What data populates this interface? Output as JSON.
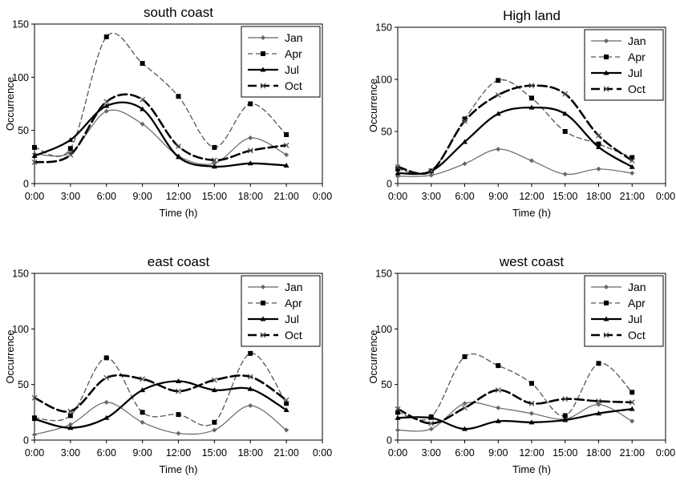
{
  "chart_data": [
    {
      "type": "line",
      "title": "south coast",
      "xlabel": "Time (h)",
      "ylabel": "Occurrence",
      "xticks": [
        "0:00",
        "3:00",
        "6:00",
        "9:00",
        "12:00",
        "15:00",
        "18:00",
        "21:00",
        "0:00"
      ],
      "yticks": [
        "0",
        "50",
        "100",
        "150"
      ],
      "ylim": [
        0,
        150
      ],
      "legend_position": "top-right",
      "grid": false,
      "x": [
        "0:00",
        "3:00",
        "6:00",
        "9:00",
        "12:00",
        "15:00",
        "18:00",
        "21:00"
      ],
      "series": [
        {
          "name": "Jan",
          "values": [
            28,
            29,
            68,
            56,
            26,
            19,
            43,
            27
          ]
        },
        {
          "name": "Apr",
          "values": [
            34,
            33,
            138,
            113,
            82,
            34,
            75,
            46
          ]
        },
        {
          "name": "Jul",
          "values": [
            26,
            41,
            73,
            70,
            25,
            16,
            19,
            17
          ]
        },
        {
          "name": "Oct",
          "values": [
            20,
            27,
            77,
            79,
            35,
            22,
            31,
            36
          ]
        }
      ]
    },
    {
      "type": "line",
      "title": "High land",
      "xlabel": "Time (h)",
      "ylabel": "Occurrence",
      "xticks": [
        "0:00",
        "3:00",
        "6:00",
        "9:00",
        "12:00",
        "15:00",
        "18:00",
        "21:00",
        "0:00"
      ],
      "yticks": [
        "0",
        "50",
        "100",
        "150"
      ],
      "ylim": [
        0,
        150
      ],
      "legend_position": "top-right",
      "grid": false,
      "x": [
        "0:00",
        "3:00",
        "6:00",
        "9:00",
        "12:00",
        "15:00",
        "18:00",
        "21:00"
      ],
      "series": [
        {
          "name": "Jan",
          "values": [
            7,
            8,
            19,
            33,
            22,
            9,
            14,
            10
          ]
        },
        {
          "name": "Apr",
          "values": [
            14,
            12,
            62,
            99,
            82,
            50,
            38,
            25
          ]
        },
        {
          "name": "Jul",
          "values": [
            10,
            12,
            40,
            67,
            73,
            67,
            35,
            16
          ]
        },
        {
          "name": "Oct",
          "values": [
            16,
            12,
            60,
            85,
            94,
            86,
            46,
            22
          ]
        }
      ]
    },
    {
      "type": "line",
      "title": "east coast",
      "xlabel": "Time (h)",
      "ylabel": "Occurrence",
      "xticks": [
        "0:00",
        "3:00",
        "6:00",
        "9:00",
        "12:00",
        "15:00",
        "18:00",
        "21:00",
        "0:00"
      ],
      "yticks": [
        "0",
        "50",
        "100",
        "150"
      ],
      "ylim": [
        0,
        150
      ],
      "legend_position": "top-right",
      "grid": false,
      "x": [
        "0:00",
        "3:00",
        "6:00",
        "9:00",
        "12:00",
        "15:00",
        "18:00",
        "21:00"
      ],
      "series": [
        {
          "name": "Jan",
          "values": [
            5,
            14,
            34,
            16,
            6,
            9,
            31,
            9
          ]
        },
        {
          "name": "Apr",
          "values": [
            20,
            22,
            74,
            25,
            23,
            16,
            78,
            33
          ]
        },
        {
          "name": "Jul",
          "values": [
            19,
            11,
            20,
            45,
            53,
            45,
            46,
            27
          ]
        },
        {
          "name": "Oct",
          "values": [
            38,
            26,
            56,
            55,
            44,
            54,
            57,
            36
          ]
        }
      ]
    },
    {
      "type": "line",
      "title": "west coast",
      "xlabel": "Time (h)",
      "ylabel": "Occurrence",
      "xticks": [
        "0:00",
        "3:00",
        "6:00",
        "9:00",
        "12:00",
        "15:00",
        "18:00",
        "21:00",
        "0:00"
      ],
      "yticks": [
        "0",
        "50",
        "100",
        "150"
      ],
      "ylim": [
        0,
        150
      ],
      "legend_position": "top-right",
      "grid": false,
      "x": [
        "0:00",
        "3:00",
        "6:00",
        "9:00",
        "12:00",
        "15:00",
        "18:00",
        "21:00"
      ],
      "series": [
        {
          "name": "Jan",
          "values": [
            9,
            10,
            33,
            29,
            24,
            19,
            32,
            17
          ]
        },
        {
          "name": "Apr",
          "values": [
            25,
            21,
            75,
            67,
            51,
            22,
            69,
            43
          ]
        },
        {
          "name": "Jul",
          "values": [
            20,
            20,
            10,
            17,
            16,
            18,
            24,
            28
          ]
        },
        {
          "name": "Oct",
          "values": [
            28,
            15,
            29,
            45,
            33,
            37,
            35,
            34
          ]
        }
      ]
    }
  ]
}
